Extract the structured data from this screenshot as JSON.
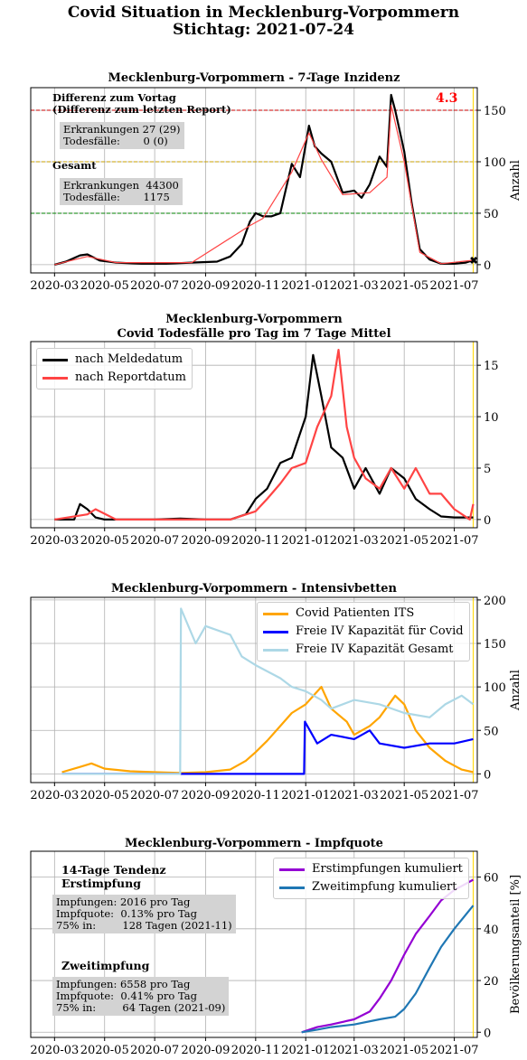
{
  "page": {
    "title_line1": "Covid Situation in Mecklenburg-Vorpommern",
    "title_line2": "Stichtag: 2021-07-24"
  },
  "x_tick_labels": [
    "2020-03",
    "2020-05",
    "2020-07",
    "2020-09",
    "2020-11",
    "2021-01",
    "2021-03",
    "2021-05",
    "2021-07"
  ],
  "panel1": {
    "title": "Mecklenburg-Vorpommern - 7-Tage Inzidenz",
    "ylabel": "Anzahl",
    "current_value": "4.3",
    "diff_header": "Differenz zum Vortag\n(Differenz zum letzten Report)",
    "diff_box": "Erkrankungen 27 (29)\nTodesfälle:       0 (0)",
    "total_header": "Gesamt",
    "total_box": "Erkrankungen  44300\nTodesfälle:       1175"
  },
  "panel2": {
    "title_line1": "Mecklenburg-Vorpommern",
    "title_line2": "Covid Todesfälle pro Tag im 7 Tage Mittel",
    "legend": [
      "nach Meldedatum",
      "nach Reportdatum"
    ]
  },
  "panel3": {
    "title": "Mecklenburg-Vorpommern - Intensivbetten",
    "ylabel": "Anzahl",
    "legend": [
      "Covid Patienten ITS",
      "Freie IV Kapazität für Covid",
      "Freie IV Kapazität Gesamt"
    ]
  },
  "panel4": {
    "title": "Mecklenburg-Vorpommern - Impfquote",
    "ylabel": "Bevölkerungsanteil [%]",
    "first_header": "14-Tage Tendenz\nErstimpfung",
    "first_box": "Impfungen: 2016 pro Tag\nImpfquote:  0.13% pro Tag\n75% in:        128 Tagen (2021-11)",
    "second_header": "Zweitimpfung",
    "second_box": "Impfungen: 6558 pro Tag\nImpfquote:  0.41% pro Tag\n75% in:        64 Tagen (2021-09)",
    "legend": [
      "Erstimpfungen kumuliert",
      "Zweitimpfung kumuliert"
    ]
  },
  "colors": {
    "black": "#000000",
    "red": "#ff4444",
    "orange": "#ffa500",
    "blue": "#0000ff",
    "lightblue": "#add8e6",
    "purple": "#9400d3",
    "steelblue": "#1f77b4",
    "grid": "#b0b0b0",
    "yellow_line": "#ffd700",
    "ref_red": "#cc0000",
    "ref_orange": "#c8a000",
    "ref_green": "#008000"
  },
  "chart_data": [
    {
      "type": "line",
      "title": "Mecklenburg-Vorpommern - 7-Tage Inzidenz",
      "ylabel": "Anzahl",
      "ylim": [
        -8,
        172
      ],
      "yticks": [
        0,
        50,
        100,
        150
      ],
      "reference_lines": [
        150,
        100,
        50
      ],
      "series": [
        {
          "name": "",
          "color": "#000000",
          "x": [
            "2020-03-01",
            "2020-03-15",
            "2020-04-01",
            "2020-04-10",
            "2020-04-25",
            "2020-05-15",
            "2020-06-15",
            "2020-07-15",
            "2020-08-15",
            "2020-09-15",
            "2020-10-01",
            "2020-10-15",
            "2020-10-25",
            "2020-11-01",
            "2020-11-10",
            "2020-11-20",
            "2020-12-01",
            "2020-12-15",
            "2020-12-25",
            "2021-01-05",
            "2021-01-12",
            "2021-01-20",
            "2021-02-01",
            "2021-02-15",
            "2021-03-01",
            "2021-03-10",
            "2021-03-20",
            "2021-04-01",
            "2021-04-10",
            "2021-04-15",
            "2021-04-20",
            "2021-05-01",
            "2021-05-10",
            "2021-05-20",
            "2021-06-01",
            "2021-06-15",
            "2021-07-01",
            "2021-07-15",
            "2021-07-24"
          ],
          "y": [
            0,
            3,
            9,
            10,
            4,
            2,
            1,
            1,
            2,
            3,
            8,
            20,
            42,
            50,
            47,
            47,
            50,
            98,
            85,
            135,
            115,
            108,
            100,
            70,
            72,
            65,
            78,
            105,
            95,
            165,
            150,
            110,
            60,
            15,
            5,
            1,
            1,
            2,
            4.3
          ]
        },
        {
          "name": "",
          "color": "#ff4444",
          "x": [
            "2020-03-01",
            "2020-04-10",
            "2020-05-15",
            "2020-08-15",
            "2020-10-25",
            "2020-11-10",
            "2020-12-15",
            "2021-01-05",
            "2021-01-20",
            "2021-02-15",
            "2021-03-20",
            "2021-04-10",
            "2021-04-15",
            "2021-05-01",
            "2021-05-20",
            "2021-06-15",
            "2021-07-24"
          ],
          "y": [
            0,
            8,
            2,
            2,
            38,
            45,
            90,
            128,
            102,
            68,
            70,
            85,
            155,
            100,
            12,
            1,
            4.3
          ]
        }
      ]
    },
    {
      "type": "line",
      "title": "Mecklenburg-Vorpommern\nCovid Todesfälle pro Tag im 7 Tage Mittel",
      "ylim": [
        -0.8,
        17.3
      ],
      "yticks": [
        0,
        5,
        10,
        15
      ],
      "series": [
        {
          "name": "nach Meldedatum",
          "color": "#000000",
          "x": [
            "2020-03-01",
            "2020-03-25",
            "2020-04-01",
            "2020-04-10",
            "2020-04-20",
            "2020-05-01",
            "2020-06-01",
            "2020-07-01",
            "2020-08-01",
            "2020-09-01",
            "2020-10-01",
            "2020-10-20",
            "2020-11-01",
            "2020-11-15",
            "2020-12-01",
            "2020-12-15",
            "2021-01-01",
            "2021-01-10",
            "2021-01-20",
            "2021-02-01",
            "2021-02-15",
            "2021-03-01",
            "2021-03-15",
            "2021-04-01",
            "2021-04-15",
            "2021-05-01",
            "2021-05-15",
            "2021-06-01",
            "2021-06-15",
            "2021-07-01",
            "2021-07-24"
          ],
          "y": [
            0,
            0,
            1.5,
            1,
            0.2,
            0,
            0,
            0,
            0.1,
            0,
            0,
            0.5,
            2,
            3,
            5.5,
            6,
            10,
            16,
            12,
            7,
            6,
            3,
            5,
            2.5,
            5,
            4,
            2,
            1,
            0.3,
            0.2,
            0.2
          ]
        },
        {
          "name": "nach Reportdatum",
          "color": "#ff4444",
          "x": [
            "2020-03-01",
            "2020-04-10",
            "2020-04-20",
            "2020-05-15",
            "2020-08-01",
            "2020-10-01",
            "2020-11-01",
            "2020-11-15",
            "2020-12-01",
            "2020-12-15",
            "2021-01-01",
            "2021-01-15",
            "2021-02-01",
            "2021-02-10",
            "2021-02-20",
            "2021-03-01",
            "2021-03-15",
            "2021-04-01",
            "2021-04-15",
            "2021-05-01",
            "2021-05-15",
            "2021-06-01",
            "2021-06-15",
            "2021-07-01",
            "2021-07-20",
            "2021-07-24"
          ],
          "y": [
            0,
            0.5,
            1,
            0,
            0,
            0,
            0.8,
            2,
            3.5,
            5,
            5.5,
            9,
            12,
            16.5,
            9,
            6,
            4,
            3,
            5,
            3,
            5,
            2.5,
            2.5,
            1,
            0,
            1.5
          ]
        }
      ]
    },
    {
      "type": "line",
      "title": "Mecklenburg-Vorpommern - Intensivbetten",
      "ylabel": "Anzahl",
      "ylim": [
        -10,
        203
      ],
      "yticks": [
        0,
        50,
        100,
        150,
        200
      ],
      "series": [
        {
          "name": "Covid Patienten ITS",
          "color": "#ffa500",
          "x": [
            "2020-03-10",
            "2020-04-01",
            "2020-04-15",
            "2020-05-01",
            "2020-06-01",
            "2020-07-01",
            "2020-08-01",
            "2020-09-01",
            "2020-10-01",
            "2020-10-20",
            "2020-11-01",
            "2020-11-15",
            "2020-12-01",
            "2020-12-15",
            "2021-01-01",
            "2021-01-20",
            "2021-02-01",
            "2021-02-20",
            "2021-03-01",
            "2021-03-20",
            "2021-04-01",
            "2021-04-20",
            "2021-05-01",
            "2021-05-15",
            "2021-06-01",
            "2021-06-20",
            "2021-07-10",
            "2021-07-24"
          ],
          "y": [
            2,
            8,
            12,
            6,
            3,
            2,
            1,
            2,
            5,
            15,
            25,
            38,
            55,
            70,
            80,
            100,
            75,
            60,
            45,
            55,
            65,
            90,
            80,
            50,
            30,
            15,
            5,
            2
          ]
        },
        {
          "name": "Freie IV Kapazität für Covid",
          "color": "#0000ff",
          "x": [
            "2020-03-10",
            "2020-08-01",
            "2020-12-30",
            "2020-12-31",
            "2021-01-15",
            "2021-02-01",
            "2021-03-01",
            "2021-03-20",
            "2021-04-01",
            "2021-05-01",
            "2021-06-01",
            "2021-07-01",
            "2021-07-24"
          ],
          "y": [
            0,
            0,
            0,
            60,
            35,
            45,
            40,
            50,
            35,
            30,
            35,
            35,
            40
          ]
        },
        {
          "name": "Freie IV Kapazität Gesamt",
          "color": "#add8e6",
          "x": [
            "2020-03-10",
            "2020-08-01",
            "2020-08-02",
            "2020-08-20",
            "2020-09-01",
            "2020-10-01",
            "2020-10-15",
            "2020-11-01",
            "2020-12-01",
            "2020-12-15",
            "2021-01-01",
            "2021-01-20",
            "2021-02-01",
            "2021-03-01",
            "2021-04-01",
            "2021-05-01",
            "2021-06-01",
            "2021-06-20",
            "2021-07-10",
            "2021-07-24"
          ],
          "y": [
            0,
            0,
            190,
            150,
            170,
            160,
            135,
            125,
            110,
            100,
            95,
            85,
            75,
            85,
            80,
            70,
            65,
            80,
            90,
            80
          ]
        }
      ]
    },
    {
      "type": "line",
      "title": "Mecklenburg-Vorpommern - Impfquote",
      "ylabel": "Bevölkerungsanteil [%]",
      "ylim": [
        -2,
        70
      ],
      "yticks": [
        0,
        20,
        40,
        60
      ],
      "series": [
        {
          "name": "Erstimpfungen kumuliert",
          "color": "#9400d3",
          "x": [
            "2020-12-27",
            "2021-01-15",
            "2021-02-01",
            "2021-03-01",
            "2021-03-20",
            "2021-04-01",
            "2021-04-15",
            "2021-05-01",
            "2021-05-15",
            "2021-06-01",
            "2021-06-15",
            "2021-07-01",
            "2021-07-24"
          ],
          "y": [
            0,
            2,
            3,
            5,
            8,
            13,
            20,
            30,
            38,
            45,
            51,
            55,
            59
          ]
        },
        {
          "name": "Zweitimpfung kumuliert",
          "color": "#1f77b4",
          "x": [
            "2020-12-27",
            "2021-01-15",
            "2021-02-01",
            "2021-03-01",
            "2021-04-01",
            "2021-04-20",
            "2021-05-01",
            "2021-05-15",
            "2021-06-01",
            "2021-06-15",
            "2021-07-01",
            "2021-07-24"
          ],
          "y": [
            0,
            1,
            2,
            3,
            5,
            6,
            9,
            15,
            25,
            33,
            40,
            49
          ]
        }
      ]
    }
  ]
}
